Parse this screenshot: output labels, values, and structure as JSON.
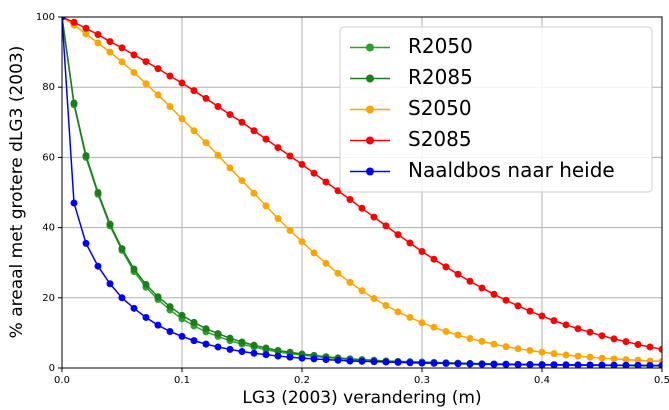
{
  "chart_data": {
    "type": "line",
    "xlabel": "LG3 (2003) verandering (m)",
    "ylabel": "% areaal met grotere dLG3 (2003)",
    "x": [
      0,
      0.01,
      0.02,
      0.03,
      0.04,
      0.05,
      0.06,
      0.07,
      0.08,
      0.09,
      0.1,
      0.11,
      0.12,
      0.13,
      0.14,
      0.15,
      0.16,
      0.17,
      0.18,
      0.19,
      0.2,
      0.21,
      0.22,
      0.23,
      0.24,
      0.25,
      0.26,
      0.27,
      0.28,
      0.29,
      0.3,
      0.31,
      0.32,
      0.33,
      0.34,
      0.35,
      0.36,
      0.37,
      0.38,
      0.39,
      0.4,
      0.41,
      0.42,
      0.43,
      0.44,
      0.45,
      0.46,
      0.47,
      0.48,
      0.49,
      0.5
    ],
    "series": [
      {
        "name": "R2050",
        "color": "#2ca02c",
        "values": [
          100,
          75,
          60,
          49.5,
          40.5,
          33.5,
          27.5,
          23,
          19.5,
          16.5,
          14,
          12,
          10.3,
          9,
          7.8,
          6.8,
          6,
          5.2,
          4.6,
          4.1,
          3.7,
          3.3,
          3,
          2.7,
          2.4,
          2.2,
          2,
          1.8,
          1.7,
          1.6,
          1.5,
          1.4,
          1.3,
          1.2,
          1.1,
          1.05,
          1,
          0.95,
          0.9,
          0.88,
          0.85,
          0.82,
          0.8,
          0.77,
          0.75,
          0.72,
          0.7,
          0.68,
          0.65,
          0.62,
          0.6
        ]
      },
      {
        "name": "R2085",
        "color": "#1a7f1a",
        "values": [
          100,
          75.5,
          60.5,
          50,
          41,
          34,
          28.2,
          23.8,
          20.3,
          17.5,
          15,
          13,
          11.2,
          9.8,
          8.5,
          7.4,
          6.5,
          5.7,
          5,
          4.5,
          4,
          3.6,
          3.2,
          2.9,
          2.6,
          2.4,
          2.2,
          2,
          1.9,
          1.8,
          1.7,
          1.6,
          1.5,
          1.4,
          1.3,
          1.2,
          1.15,
          1.1,
          1.05,
          1,
          0.97,
          0.94,
          0.91,
          0.88,
          0.85,
          0.82,
          0.8,
          0.77,
          0.75,
          0.72,
          0.7
        ]
      },
      {
        "name": "S2050",
        "color": "#ffa500",
        "values": [
          100,
          97.7,
          95.2,
          92.6,
          90,
          87.2,
          84.2,
          81,
          77.8,
          74.5,
          71,
          67.6,
          64.2,
          60.6,
          57,
          53.4,
          49.8,
          46.2,
          42.6,
          39.2,
          36,
          32.8,
          29.8,
          27,
          24.4,
          22,
          19.8,
          17.8,
          16,
          14.4,
          12.9,
          11.6,
          10.4,
          9.4,
          8.4,
          7.6,
          6.8,
          6.1,
          5.5,
          5,
          4.5,
          4.1,
          3.7,
          3.4,
          3.1,
          2.8,
          2.6,
          2.4,
          2.2,
          2,
          1.9
        ]
      },
      {
        "name": "S2085",
        "color": "#ff0000",
        "values": [
          100,
          98.5,
          96.8,
          95,
          93,
          91.2,
          89.2,
          87.3,
          85.3,
          83.2,
          81.2,
          79,
          76.8,
          74.5,
          72.2,
          70,
          67.6,
          65.2,
          62.8,
          60.4,
          58,
          55.5,
          53,
          50.5,
          48,
          45.5,
          43,
          40.5,
          38,
          35.6,
          33.2,
          31,
          28.8,
          26.7,
          24.7,
          22.8,
          21,
          19.3,
          17.7,
          16.2,
          14.8,
          13.5,
          12.3,
          11.2,
          10.2,
          9.2,
          8.3,
          7.5,
          6.7,
          6,
          5.3
        ]
      },
      {
        "name": "Naaldbos naar heide",
        "color": "#0000ff",
        "values": [
          100,
          47,
          35.5,
          29,
          24,
          20,
          17,
          14.4,
          12.2,
          10.4,
          9,
          7.8,
          6.8,
          6,
          5.3,
          4.7,
          4.2,
          3.8,
          3.4,
          3.1,
          2.8,
          2.6,
          2.4,
          2.2,
          2,
          1.9,
          1.8,
          1.7,
          1.6,
          1.5,
          1.4,
          1.35,
          1.3,
          1.25,
          1.2,
          1.15,
          1.1,
          1.05,
          1,
          0.98,
          0.95,
          0.92,
          0.9,
          0.87,
          0.85,
          0.82,
          0.8,
          0.77,
          0.75,
          0.72,
          0.7
        ]
      }
    ],
    "xlim": [
      0,
      0.5
    ],
    "xticks": [
      {
        "value": 0,
        "label": "0.0"
      },
      0.1,
      0.2,
      0.3,
      0.4,
      0.5
    ],
    "ylim": [
      0,
      100
    ],
    "yticks": [
      0,
      20,
      40,
      60,
      80,
      100
    ],
    "grid": true,
    "legend": "upper right"
  }
}
